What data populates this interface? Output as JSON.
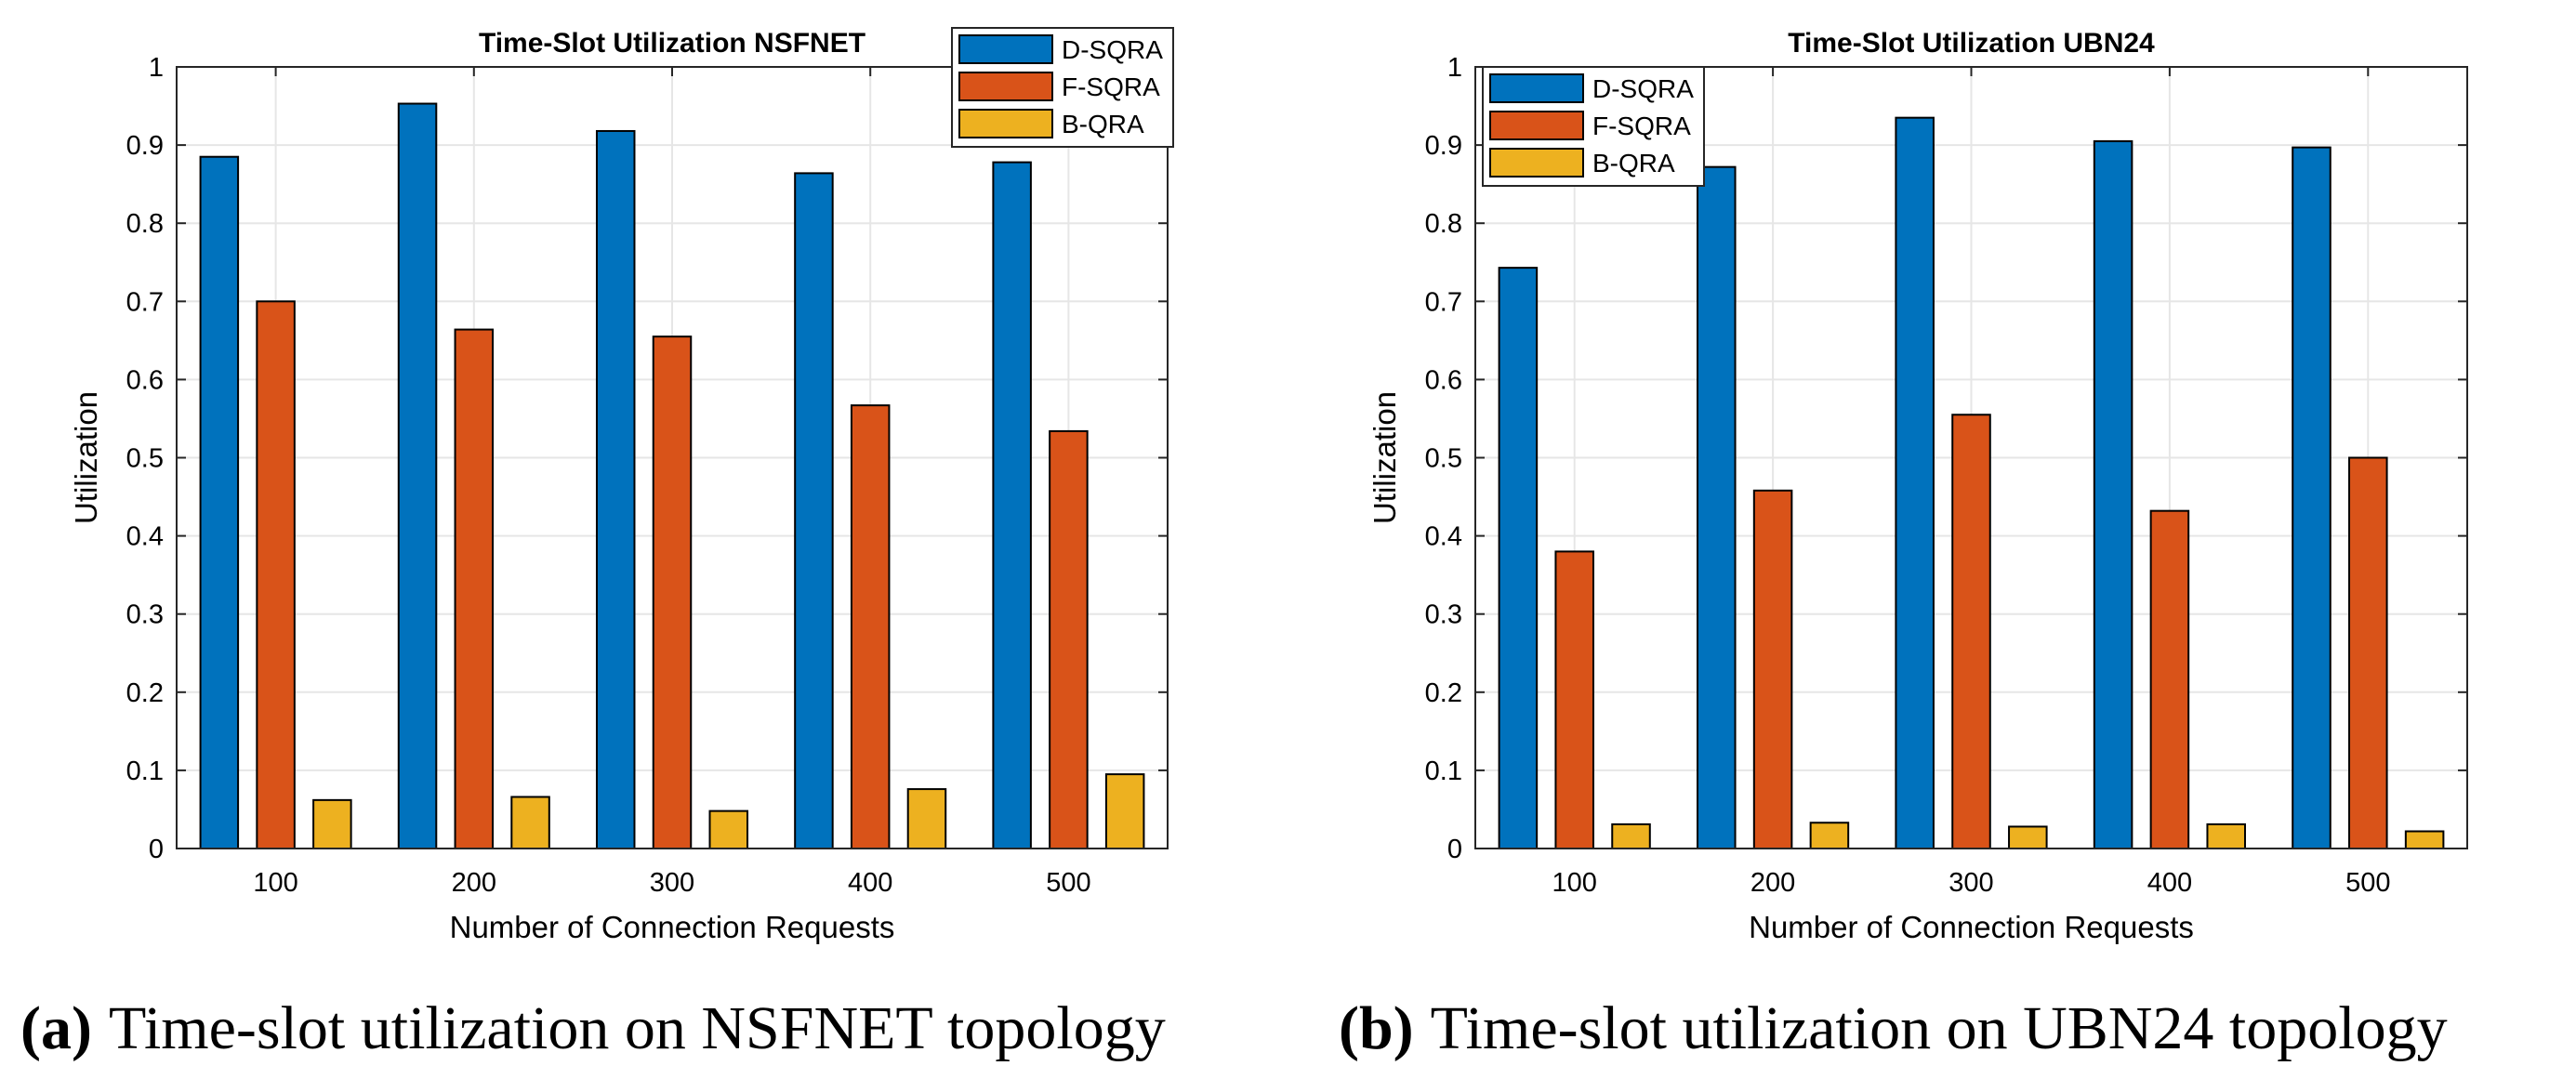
{
  "chart_data": [
    {
      "type": "bar",
      "title": "Time-Slot Utilization NSFNET",
      "xlabel": "Number of Connection Requests",
      "ylabel": "Utilization",
      "ylim": [
        0,
        1
      ],
      "yticks": [
        "0",
        "0.1",
        "0.2",
        "0.3",
        "0.4",
        "0.5",
        "0.6",
        "0.7",
        "0.8",
        "0.9",
        "1"
      ],
      "categories": [
        "100",
        "200",
        "300",
        "400",
        "500"
      ],
      "series": [
        {
          "name": "D-SQRA",
          "color": "#0072BD",
          "values": [
            0.885,
            0.953,
            0.918,
            0.864,
            0.878
          ]
        },
        {
          "name": "F-SQRA",
          "color": "#D95319",
          "values": [
            0.7,
            0.664,
            0.655,
            0.567,
            0.534
          ]
        },
        {
          "name": "B-QRA",
          "color": "#EDB120",
          "values": [
            0.062,
            0.066,
            0.048,
            0.076,
            0.095
          ]
        }
      ],
      "grid": true,
      "legend_position": "top-right",
      "caption_label": "(a)",
      "caption_text": "Time-slot utilization on NSFNET topology"
    },
    {
      "type": "bar",
      "title": "Time-Slot Utilization UBN24",
      "xlabel": "Number of Connection Requests",
      "ylabel": "Utilization",
      "ylim": [
        0,
        1
      ],
      "yticks": [
        "0",
        "0.1",
        "0.2",
        "0.3",
        "0.4",
        "0.5",
        "0.6",
        "0.7",
        "0.8",
        "0.9",
        "1"
      ],
      "categories": [
        "100",
        "200",
        "300",
        "400",
        "500"
      ],
      "series": [
        {
          "name": "D-SQRA",
          "color": "#0072BD",
          "values": [
            0.743,
            0.872,
            0.935,
            0.905,
            0.897
          ]
        },
        {
          "name": "F-SQRA",
          "color": "#D95319",
          "values": [
            0.38,
            0.458,
            0.555,
            0.432,
            0.5
          ]
        },
        {
          "name": "B-QRA",
          "color": "#EDB120",
          "values": [
            0.031,
            0.033,
            0.028,
            0.031,
            0.022
          ]
        }
      ],
      "grid": true,
      "legend_position": "top-left",
      "caption_label": "(b)",
      "caption_text": "Time-slot utilization on UBN24 topology"
    }
  ]
}
